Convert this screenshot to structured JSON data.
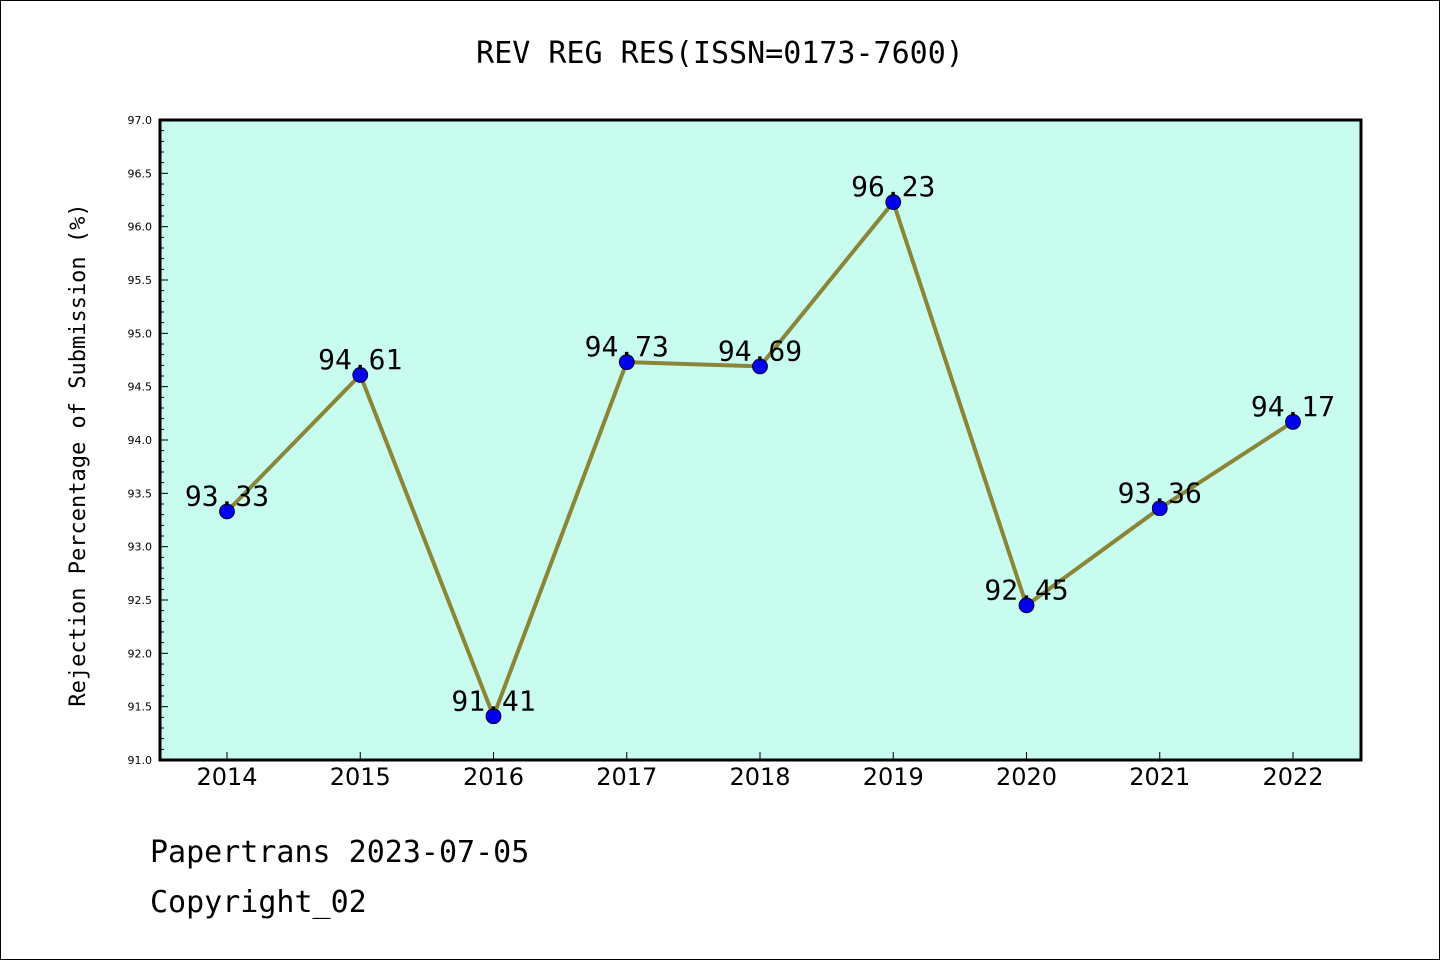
{
  "chart_data": {
    "type": "line",
    "title": "REV REG RES(ISSN=0173-7600)",
    "xlabel": "",
    "ylabel": "Rejection Percentage of Submission (%)",
    "categories": [
      "2014",
      "2015",
      "2016",
      "2017",
      "2018",
      "2019",
      "2020",
      "2021",
      "2022"
    ],
    "values": [
      93.33,
      94.61,
      91.41,
      94.73,
      94.69,
      96.23,
      92.45,
      93.36,
      94.17
    ],
    "data_labels": [
      "93.33",
      "94.61",
      "91.41",
      "94.73",
      "94.69",
      "96.23",
      "92.45",
      "93.36",
      "94.17"
    ],
    "ylim": [
      91.0,
      97.0
    ],
    "yticks": [
      "91.0",
      "91.5",
      "92.0",
      "92.5",
      "93.0",
      "93.5",
      "94.0",
      "94.5",
      "95.0",
      "95.5",
      "96.0",
      "96.5",
      "97.0"
    ],
    "grid": false,
    "colors": {
      "plot_background": "#c8fcee",
      "line": "#8b8538",
      "marker": "#0000ee"
    }
  },
  "footer": {
    "line1": "Papertrans 2023-07-05",
    "line2": "Copyright_02"
  }
}
